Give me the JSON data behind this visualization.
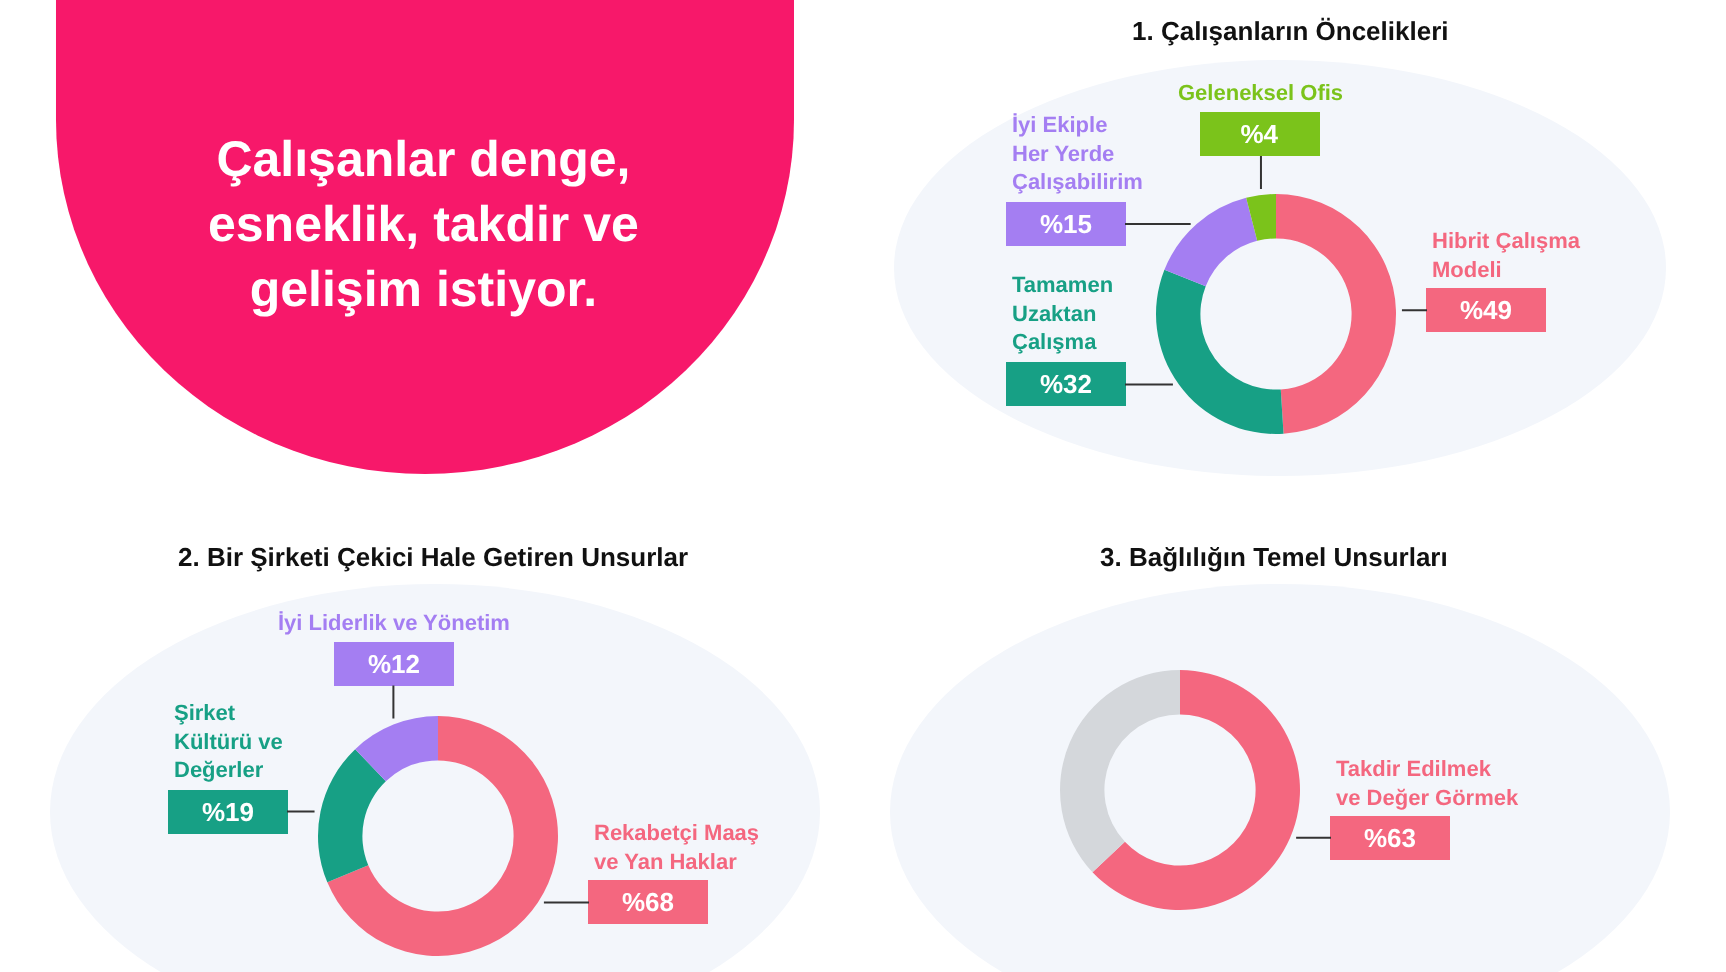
{
  "chart_data": [
    {
      "type": "other",
      "title": "Çalışanlar denge, esneklik, takdir ve gelişim istiyor."
    },
    {
      "type": "donut",
      "title": "1. Çalışanların Öncelikleri",
      "categories": [
        "Hibrit Çalışma Modeli",
        "Tamamen Uzaktan Çalışma",
        "İyi Ekiple Her Yerde Çalışabilirim",
        "Geleneksel Ofis"
      ],
      "values": [
        49,
        32,
        15,
        4
      ],
      "colors": [
        "#f4677f",
        "#17a085",
        "#a47ef2",
        "#7bc31b"
      ],
      "value_labels": [
        "%49",
        "%32",
        "%15",
        "%4"
      ]
    },
    {
      "type": "donut",
      "title": "2. Bir Şirketi Çekici Hale Getiren Unsurlar",
      "categories": [
        "Rekabetçi Maaş ve Yan Haklar",
        "Şirket Kültürü ve Değerler",
        "İyi Liderlik ve Yönetim"
      ],
      "values": [
        68,
        19,
        12
      ],
      "colors": [
        "#f4677f",
        "#17a085",
        "#a47ef2"
      ],
      "value_labels": [
        "%68",
        "%19",
        "%12"
      ]
    },
    {
      "type": "donut",
      "title": "3. Bağlılığın Temel Unsurları",
      "categories": [
        "Takdir Edilmek ve Değer Görmek",
        null
      ],
      "values": [
        63,
        37
      ],
      "colors": [
        "#f4677f",
        "#d4d7db"
      ],
      "value_labels": [
        "%63",
        null
      ]
    }
  ]
}
